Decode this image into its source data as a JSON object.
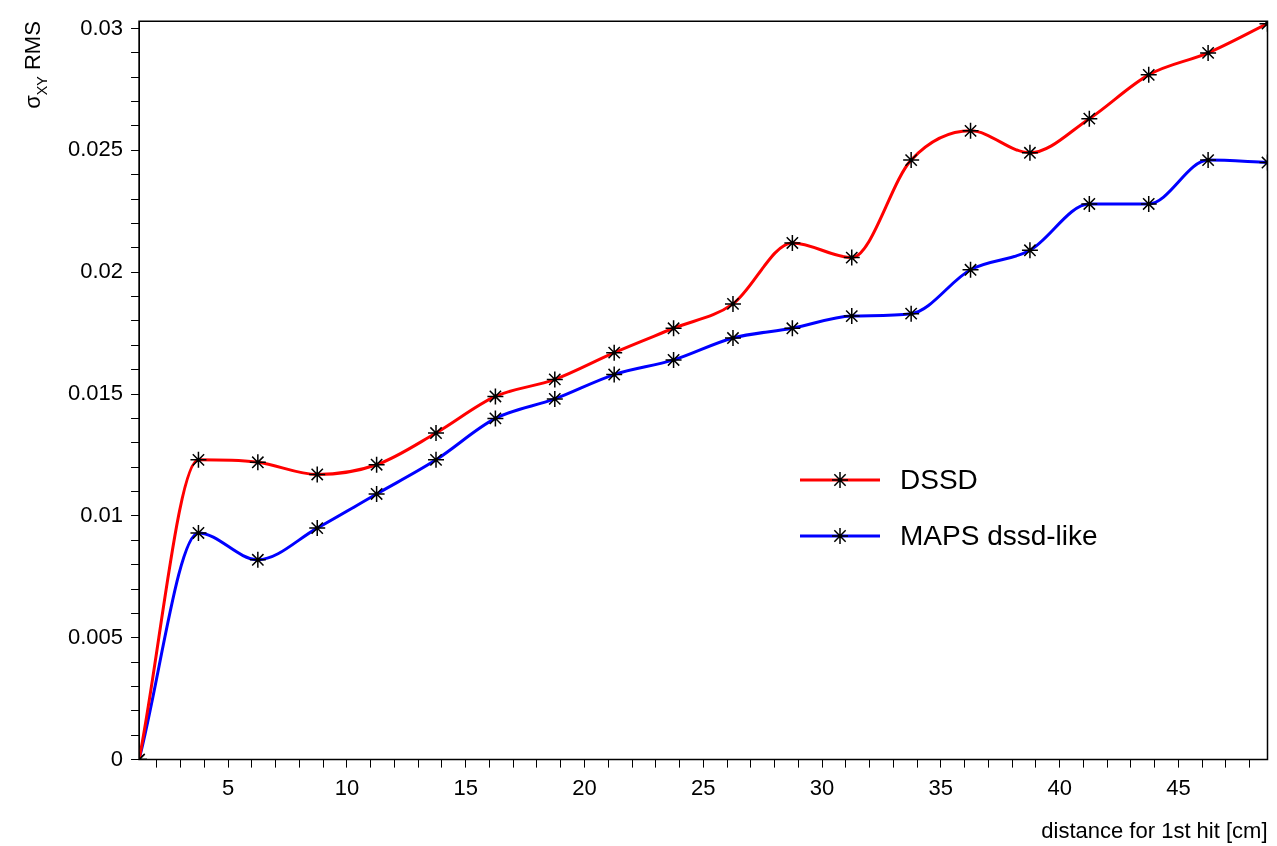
{
  "chart_data": {
    "type": "line",
    "xlabel": "distance for 1st hit [cm]",
    "ylabel": "σ$_{XY}$ RMS",
    "x": [
      1.25,
      3.75,
      6.25,
      8.75,
      11.25,
      13.75,
      16.25,
      18.75,
      21.25,
      23.75,
      26.25,
      28.75,
      31.25,
      33.75,
      36.25,
      38.75,
      41.25,
      43.75,
      46.25,
      48.75
    ],
    "series": [
      {
        "name": "DSSD",
        "color": "#ff0000",
        "values": [
          0,
          0.0123,
          0.0122,
          0.0117,
          0.0121,
          0.0134,
          0.0149,
          0.0156,
          0.0167,
          0.0177,
          0.0187,
          0.0212,
          0.0206,
          0.0246,
          0.0258,
          0.0249,
          0.0263,
          0.0281,
          0.029,
          0.0302
        ]
      },
      {
        "name": "MAPS dssd-like",
        "color": "#0000ff",
        "values": [
          0,
          0.0093,
          0.0082,
          0.0095,
          0.0109,
          0.0123,
          0.014,
          0.0148,
          0.0158,
          0.0164,
          0.0173,
          0.0177,
          0.0182,
          0.0183,
          0.0201,
          0.0209,
          0.0228,
          0.0228,
          0.0246,
          0.0245
        ]
      }
    ],
    "xlim": [
      1.25,
      48.75
    ],
    "xticks": [
      {
        "value": 2,
        "label": null
      },
      {
        "value": 3,
        "label": null
      },
      {
        "value": 4,
        "label": null
      },
      5,
      {
        "value": 6,
        "label": null
      },
      {
        "value": 7,
        "label": null
      },
      {
        "value": 8,
        "label": null
      },
      {
        "value": 9,
        "label": null
      },
      10,
      {
        "value": 11,
        "label": null
      },
      {
        "value": 12,
        "label": null
      },
      {
        "value": 13,
        "label": null
      },
      {
        "value": 14,
        "label": null
      },
      15,
      {
        "value": 16,
        "label": null
      },
      {
        "value": 17,
        "label": null
      },
      {
        "value": 18,
        "label": null
      },
      {
        "value": 19,
        "label": null
      },
      20,
      {
        "value": 21,
        "label": null
      },
      {
        "value": 22,
        "label": null
      },
      {
        "value": 23,
        "label": null
      },
      {
        "value": 24,
        "label": null
      },
      25,
      {
        "value": 26,
        "label": null
      },
      {
        "value": 27,
        "label": null
      },
      {
        "value": 28,
        "label": null
      },
      {
        "value": 29,
        "label": null
      },
      30,
      {
        "value": 31,
        "label": null
      },
      {
        "value": 32,
        "label": null
      },
      {
        "value": 33,
        "label": null
      },
      {
        "value": 34,
        "label": null
      },
      35,
      {
        "value": 36,
        "label": null
      },
      {
        "value": 37,
        "label": null
      },
      {
        "value": 38,
        "label": null
      },
      {
        "value": 39,
        "label": null
      },
      40,
      {
        "value": 41,
        "label": null
      },
      {
        "value": 42,
        "label": null
      },
      {
        "value": 43,
        "label": null
      },
      {
        "value": 44,
        "label": null
      },
      45,
      {
        "value": 46,
        "label": null
      },
      {
        "value": 47,
        "label": null
      },
      {
        "value": 48,
        "label": null
      }
    ],
    "ylim": [
      0,
      0.0303
    ],
    "yticks": [
      0,
      {
        "value": 0.001,
        "label": null
      },
      {
        "value": 0.002,
        "label": null
      },
      {
        "value": 0.003,
        "label": null
      },
      {
        "value": 0.004,
        "label": null
      },
      0.005,
      {
        "value": 0.006,
        "label": null
      },
      {
        "value": 0.007,
        "label": null
      },
      {
        "value": 0.008,
        "label": null
      },
      {
        "value": 0.009,
        "label": null
      },
      0.01,
      {
        "value": 0.011,
        "label": null
      },
      {
        "value": 0.012,
        "label": null
      },
      {
        "value": 0.013,
        "label": null
      },
      {
        "value": 0.014,
        "label": null
      },
      0.015,
      {
        "value": 0.016,
        "label": null
      },
      {
        "value": 0.017,
        "label": null
      },
      {
        "value": 0.018,
        "label": null
      },
      {
        "value": 0.019,
        "label": null
      },
      0.02,
      {
        "value": 0.021,
        "label": null
      },
      {
        "value": 0.022,
        "label": null
      },
      {
        "value": 0.023,
        "label": null
      },
      {
        "value": 0.024,
        "label": null
      },
      0.025,
      {
        "value": 0.026,
        "label": null
      },
      {
        "value": 0.027,
        "label": null
      },
      {
        "value": 0.028,
        "label": null
      },
      {
        "value": 0.029,
        "label": null
      },
      0.03
    ],
    "grid": false,
    "legend": "right",
    "marker": "cross",
    "line_style": "solid"
  }
}
